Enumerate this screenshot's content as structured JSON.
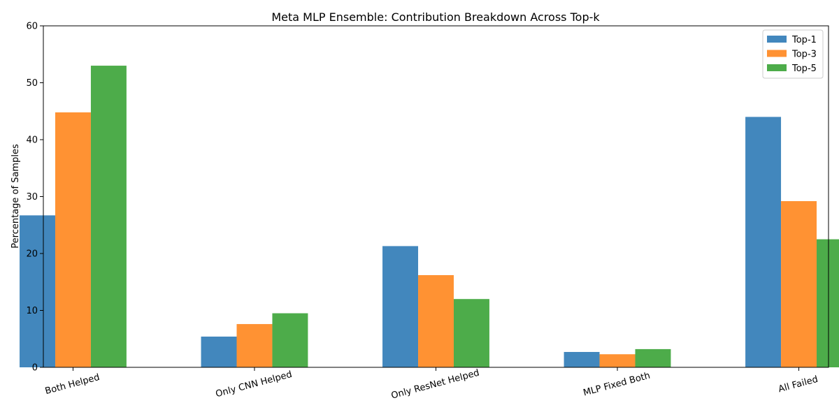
{
  "chart_data": {
    "type": "bar",
    "title": "Meta MLP Ensemble: Contribution Breakdown Across Top-k",
    "xlabel": "",
    "ylabel": "Percentage of Samples",
    "ylim": [
      0,
      60
    ],
    "yticks": [
      0,
      10,
      20,
      30,
      40,
      50,
      60
    ],
    "categories": [
      "Both Helped",
      "Only CNN Helped",
      "Only ResNet Helped",
      "MLP Fixed Both",
      "All Failed"
    ],
    "series": [
      {
        "name": "Top-1",
        "color": "#4287bd",
        "values": [
          26.7,
          5.4,
          21.3,
          2.7,
          44.0
        ]
      },
      {
        "name": "Top-3",
        "color": "#ff9233",
        "values": [
          44.8,
          7.6,
          16.2,
          2.3,
          29.2
        ]
      },
      {
        "name": "Top-5",
        "color": "#4dac4a",
        "values": [
          53.0,
          9.5,
          12.0,
          3.2,
          22.5
        ]
      }
    ],
    "grid": false,
    "legend_position": "top-right",
    "xtick_rotation": -15
  }
}
